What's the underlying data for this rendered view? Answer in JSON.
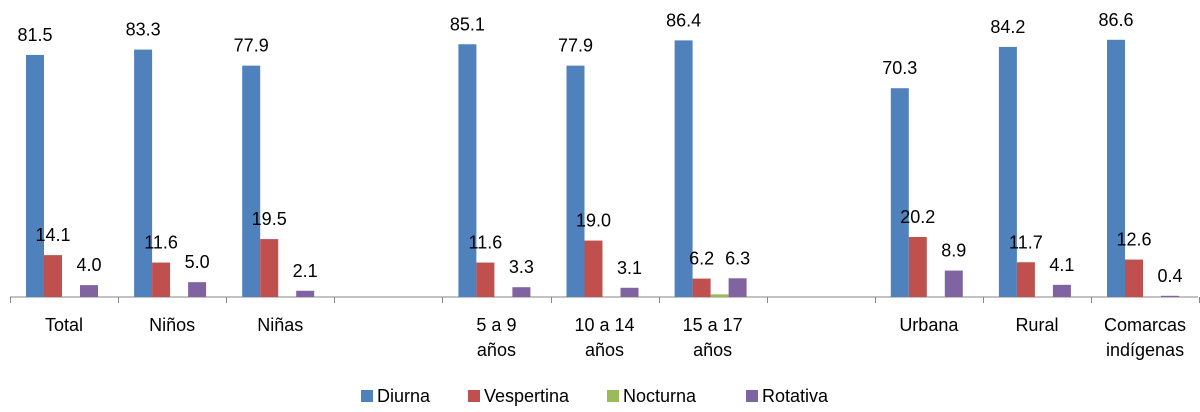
{
  "chart_data": {
    "type": "bar",
    "groups": [
      {
        "categories": [
          "Total",
          "Niños",
          "Niñas"
        ]
      },
      {
        "categories": [
          "5 a 9 años",
          "10 a 14 años",
          "15 a 17 años"
        ]
      },
      {
        "categories": [
          "Urbana",
          "Rural",
          "Comarcas indígenas"
        ]
      }
    ],
    "categories": [
      "Total",
      "Niños",
      "Niñas",
      "5 a 9 años",
      "10 a 14 años",
      "15 a 17 años",
      "Urbana",
      "Rural",
      "Comarcas indígenas"
    ],
    "category_lines": [
      [
        "Total"
      ],
      [
        "Niños"
      ],
      [
        "Niñas"
      ],
      [
        "5 a 9",
        "años"
      ],
      [
        "10 a 14",
        "años"
      ],
      [
        "15 a 17",
        "años"
      ],
      [
        "Urbana"
      ],
      [
        "Rural"
      ],
      [
        "Comarcas",
        "indígenas"
      ]
    ],
    "series": [
      {
        "name": "Diurna",
        "color": "#4f81bd",
        "values": [
          81.5,
          83.3,
          77.9,
          85.1,
          77.9,
          86.4,
          70.3,
          84.2,
          86.6
        ]
      },
      {
        "name": "Vespertina",
        "color": "#c0504d",
        "values": [
          14.1,
          11.6,
          19.5,
          11.6,
          19.0,
          6.2,
          20.2,
          11.7,
          12.6
        ]
      },
      {
        "name": "Nocturna",
        "color": "#9bbb59",
        "values": [
          null,
          null,
          null,
          null,
          null,
          0.9,
          null,
          null,
          null
        ]
      },
      {
        "name": "Rotativa",
        "color": "#8064a2",
        "values": [
          4.0,
          5.0,
          2.1,
          3.3,
          3.1,
          6.3,
          8.9,
          4.1,
          0.4
        ]
      }
    ],
    "data_labels": [
      [
        "81.5",
        "83.3",
        "77.9",
        "85.1",
        "77.9",
        "86.4",
        "70.3",
        "84.2",
        "86.6"
      ],
      [
        "14.1",
        "11.6",
        "19.5",
        "11.6",
        "19.0",
        "6.2",
        "20.2",
        "11.7",
        "12.6"
      ],
      [
        "",
        "",
        "",
        "",
        "",
        "",
        "",
        "",
        ""
      ],
      [
        "4.0",
        "5.0",
        "2.1",
        "3.3",
        "3.1",
        "6.3",
        "8.9",
        "4.1",
        "0.4"
      ]
    ],
    "ylim": [
      0,
      100
    ],
    "grid": false,
    "legend_position": "bottom",
    "title": "",
    "xlabel": "",
    "ylabel": ""
  }
}
